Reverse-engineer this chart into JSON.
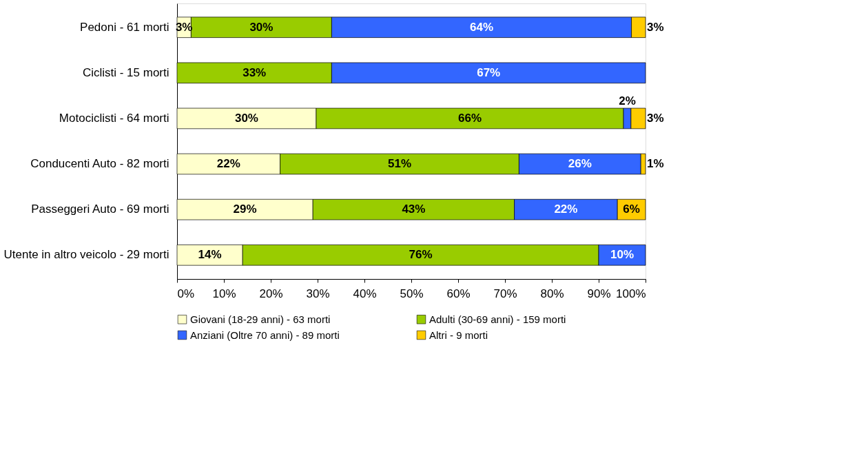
{
  "chart_data": {
    "type": "bar",
    "orientation": "horizontal",
    "stacked": true,
    "categories": [
      "Pedoni - 61 morti",
      "Ciclisti - 15 morti",
      "Motociclisti - 64 morti",
      "Conducenti Auto - 82 morti",
      "Passeggeri Auto - 69 morti",
      "Utente in altro veicolo - 29 morti"
    ],
    "series": [
      {
        "name": "Giovani (18-29 anni) - 63 morti",
        "color": "#ffffcc",
        "values": [
          3,
          null,
          29.7,
          22,
          29,
          14
        ],
        "value_labels": [
          "3%",
          null,
          "30%",
          "22%",
          "29%",
          "14%"
        ]
      },
      {
        "name": "Adulti (30-69 anni) - 159 morti",
        "color": "#99cc00",
        "values": [
          30,
          33,
          65.6,
          51,
          43,
          76
        ],
        "value_labels": [
          "30%",
          "33%",
          "66%",
          "51%",
          "43%",
          "76%"
        ]
      },
      {
        "name": "Anziani (Oltre 70 anni) - 89 morti",
        "color": "#3366ff",
        "values": [
          64,
          67,
          1.6,
          26,
          22,
          10
        ],
        "value_labels": [
          "64%",
          "67%",
          "2%",
          "26%",
          "22%",
          "10%"
        ]
      },
      {
        "name": "Altri - 9 morti",
        "color": "#ffcc00",
        "values": [
          3,
          null,
          3.1,
          1,
          6,
          null
        ],
        "value_labels": [
          "3%",
          null,
          "3%",
          "1%",
          "6%",
          null
        ]
      }
    ],
    "xlim": [
      0,
      100
    ],
    "xticks": [
      {
        "value": 0,
        "label": "0%"
      },
      {
        "value": 10,
        "label": "10%"
      },
      {
        "value": 20,
        "label": "20%"
      },
      {
        "value": 30,
        "label": "30%"
      },
      {
        "value": 40,
        "label": "40%"
      },
      {
        "value": 50,
        "label": "50%"
      },
      {
        "value": 60,
        "label": "60%"
      },
      {
        "value": 70,
        "label": "70%"
      },
      {
        "value": 80,
        "label": "80%"
      },
      {
        "value": 90,
        "label": "90%"
      },
      {
        "value": 100,
        "label": "100%"
      }
    ],
    "grid": false,
    "legend": "bottom"
  }
}
